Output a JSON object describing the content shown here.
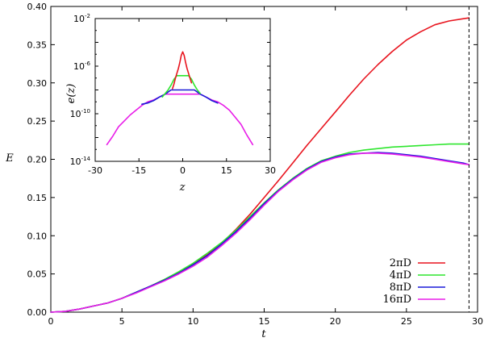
{
  "chart_data": [
    {
      "type": "line",
      "title": "",
      "xlabel": "t",
      "ylabel": "E",
      "xlim": [
        0,
        30
      ],
      "ylim": [
        0,
        0.4
      ],
      "xticks": [
        "0",
        "5",
        "10",
        "15",
        "20",
        "25",
        "30"
      ],
      "yticks": [
        "0.00",
        "0.05",
        "0.10",
        "0.15",
        "0.20",
        "0.25",
        "0.30",
        "0.35",
        "0.40"
      ],
      "grid": false,
      "legend_position": "bottom-right",
      "vertical_line": {
        "x": 29.4,
        "style": "dashed"
      },
      "series": [
        {
          "name": "2πD",
          "color": "#e8141e",
          "x": [
            0,
            1,
            2,
            3,
            4,
            5,
            6,
            7,
            8,
            9,
            10,
            11,
            12,
            13,
            14,
            15,
            16,
            17,
            18,
            19,
            20,
            21,
            22,
            23,
            24,
            25,
            26,
            27,
            28,
            29,
            29.4
          ],
          "y": [
            0.0,
            0.001,
            0.004,
            0.008,
            0.012,
            0.018,
            0.026,
            0.034,
            0.043,
            0.052,
            0.063,
            0.075,
            0.09,
            0.108,
            0.128,
            0.15,
            0.172,
            0.195,
            0.218,
            0.24,
            0.262,
            0.284,
            0.305,
            0.324,
            0.341,
            0.356,
            0.367,
            0.376,
            0.381,
            0.384,
            0.385
          ]
        },
        {
          "name": "4πD",
          "color": "#2ee62e",
          "x": [
            0,
            1,
            2,
            3,
            4,
            5,
            6,
            7,
            8,
            9,
            10,
            11,
            12,
            13,
            14,
            15,
            16,
            17,
            18,
            19,
            20,
            21,
            22,
            23,
            24,
            25,
            26,
            27,
            28,
            29,
            29.4
          ],
          "y": [
            0.0,
            0.001,
            0.004,
            0.008,
            0.012,
            0.018,
            0.026,
            0.034,
            0.043,
            0.053,
            0.064,
            0.077,
            0.091,
            0.107,
            0.125,
            0.143,
            0.16,
            0.175,
            0.188,
            0.198,
            0.204,
            0.209,
            0.212,
            0.214,
            0.216,
            0.217,
            0.218,
            0.219,
            0.22,
            0.22,
            0.22
          ]
        },
        {
          "name": "8πD",
          "color": "#1a1ad8",
          "x": [
            0,
            1,
            2,
            3,
            4,
            5,
            6,
            7,
            8,
            9,
            10,
            11,
            12,
            13,
            14,
            15,
            16,
            17,
            18,
            19,
            20,
            21,
            22,
            23,
            24,
            25,
            26,
            27,
            28,
            29,
            29.4
          ],
          "y": [
            0.0,
            0.001,
            0.004,
            0.008,
            0.012,
            0.018,
            0.026,
            0.034,
            0.042,
            0.051,
            0.062,
            0.074,
            0.089,
            0.105,
            0.123,
            0.142,
            0.159,
            0.174,
            0.187,
            0.197,
            0.203,
            0.207,
            0.208,
            0.209,
            0.208,
            0.206,
            0.204,
            0.201,
            0.198,
            0.195,
            0.193
          ]
        },
        {
          "name": "16πD",
          "color": "#e81ee8",
          "x": [
            0,
            1,
            2,
            3,
            4,
            5,
            6,
            7,
            8,
            9,
            10,
            11,
            12,
            13,
            14,
            15,
            16,
            17,
            18,
            19,
            20,
            21,
            22,
            23,
            24,
            25,
            26,
            27,
            28,
            29,
            29.4
          ],
          "y": [
            0.0,
            0.001,
            0.004,
            0.008,
            0.012,
            0.018,
            0.025,
            0.033,
            0.041,
            0.05,
            0.06,
            0.072,
            0.087,
            0.103,
            0.121,
            0.14,
            0.158,
            0.173,
            0.186,
            0.196,
            0.202,
            0.206,
            0.208,
            0.208,
            0.207,
            0.205,
            0.203,
            0.2,
            0.197,
            0.194,
            0.193
          ]
        }
      ]
    },
    {
      "type": "line",
      "title": "",
      "xlabel": "z",
      "ylabel": "e(z)",
      "xlim": [
        -30,
        30
      ],
      "ylim_log10": [
        -14,
        -2
      ],
      "yscale": "log",
      "xticks": [
        "-30",
        "-15",
        "0",
        "15",
        "30"
      ],
      "yticks": [
        {
          "base": "10",
          "exp": "-2"
        },
        {
          "base": "10",
          "exp": "-6"
        },
        {
          "base": "10",
          "exp": "-10"
        },
        {
          "base": "10",
          "exp": "-14"
        }
      ],
      "grid": false,
      "series": [
        {
          "name": "16πD",
          "color": "#e81ee8",
          "x": [
            -26.0,
            -24.0,
            -22.0,
            -20.0,
            -18.0,
            -16.0,
            -14.0,
            -12.0,
            -10.0,
            -8.0,
            -6.0,
            6.0,
            8.0,
            10.0,
            12.0,
            14.0,
            16.0,
            18.0,
            20.0,
            22.0,
            24.0
          ],
          "y_log10": [
            -12.6,
            -11.9,
            -11.1,
            -10.6,
            -10.1,
            -9.7,
            -9.3,
            -9.0,
            -8.85,
            -8.6,
            -8.35,
            -8.35,
            -8.6,
            -8.85,
            -9.0,
            -9.3,
            -9.7,
            -10.3,
            -10.9,
            -11.8,
            -12.6
          ]
        },
        {
          "name": "8πD",
          "color": "#1a1ad8",
          "x": [
            -14.0,
            -12.0,
            -10.0,
            -8.0,
            -6.0,
            -4.0,
            4.0,
            6.0,
            8.0,
            10.0,
            12.0
          ],
          "y_log10": [
            -9.2,
            -9.1,
            -8.9,
            -8.6,
            -8.35,
            -8.0,
            -8.0,
            -8.35,
            -8.6,
            -8.9,
            -9.1
          ]
        },
        {
          "name": "4πD",
          "color": "#2ee62e",
          "x": [
            -7.0,
            -6.0,
            -5.0,
            -4.0,
            -3.0,
            -2.0,
            2.0,
            3.0,
            4.0,
            5.0,
            6.0
          ],
          "y_log10": [
            -8.6,
            -8.3,
            -8.0,
            -7.6,
            -7.1,
            -6.8,
            -6.8,
            -7.1,
            -7.6,
            -8.0,
            -8.3
          ]
        },
        {
          "name": "2πD",
          "color": "#e8141e",
          "x": [
            -3.5,
            -3.0,
            -2.5,
            -2.0,
            -1.5,
            -1.0,
            -0.5,
            0.0,
            0.5,
            1.0,
            1.5,
            2.0,
            2.5,
            3.0
          ],
          "y_log10": [
            -7.9,
            -7.5,
            -7.0,
            -6.6,
            -6.2,
            -5.7,
            -5.1,
            -4.8,
            -5.1,
            -5.7,
            -6.2,
            -6.6,
            -7.0,
            -7.4
          ]
        }
      ]
    }
  ]
}
